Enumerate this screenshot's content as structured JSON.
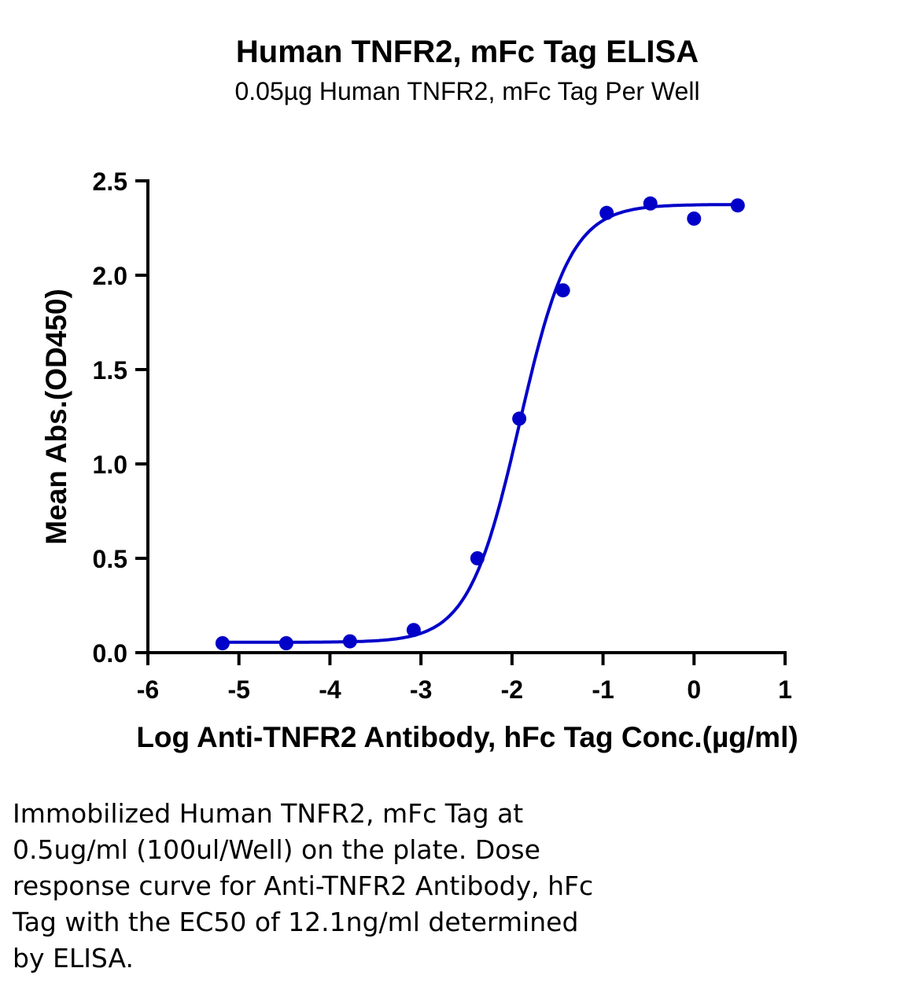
{
  "chart_data": {
    "type": "scatter",
    "title": "Human TNFR2, mFc Tag ELISA",
    "subtitle": "0.05µg Human TNFR2, mFc Tag Per Well",
    "xlabel": "Log Anti-TNFR2 Antibody, hFc Tag Conc.(µg/ml)",
    "ylabel": "Mean Abs.(OD450)",
    "xlim": [
      -6,
      1
    ],
    "ylim": [
      0,
      2.5
    ],
    "x_ticks": [
      "-6",
      "-5",
      "-4",
      "-3",
      "-2",
      "-1",
      "0",
      "1"
    ],
    "y_ticks": [
      "0.0",
      "0.5",
      "1.0",
      "1.5",
      "2.0",
      "2.5"
    ],
    "grid": false,
    "color": "#0000c8",
    "series": [
      {
        "points": [
          {
            "x": -5.18,
            "y": 0.05
          },
          {
            "x": -4.48,
            "y": 0.05
          },
          {
            "x": -3.78,
            "y": 0.06
          },
          {
            "x": -3.08,
            "y": 0.12
          },
          {
            "x": -2.38,
            "y": 0.5
          },
          {
            "x": -1.92,
            "y": 1.24
          },
          {
            "x": -1.44,
            "y": 1.92
          },
          {
            "x": -0.96,
            "y": 2.33
          },
          {
            "x": -0.48,
            "y": 2.38
          },
          {
            "x": 0.0,
            "y": 2.3
          },
          {
            "x": 0.48,
            "y": 2.37
          }
        ],
        "fit": {
          "model": "4PL",
          "bottom": 0.055,
          "top": 2.375,
          "log_ec50": -1.917,
          "hill_slope": 1.55
        }
      }
    ]
  },
  "caption": {
    "lines": [
      "Immobilized Human TNFR2, mFc Tag at",
      "0.5ug/ml (100ul/Well) on the plate. Dose",
      "response curve for Anti-TNFR2 Antibody, hFc",
      "Tag with the EC50 of 12.1ng/ml determined",
      "by ELISA."
    ]
  }
}
